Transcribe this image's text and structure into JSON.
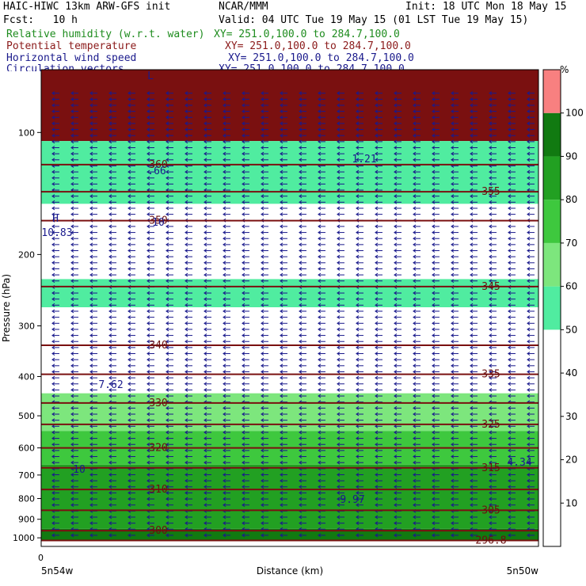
{
  "header": {
    "model": "HAIC-HIWC 13km ARW-GFS init",
    "center": "NCAR/MMM",
    "init": "Init: 18 UTC Mon 18 May 15",
    "fcst": "Fcst:   10 h",
    "valid": "Valid: 04 UTC Tue 19 May 15 (01 LST Tue 19 May 15)",
    "fields": [
      {
        "name": "Relative humidity (w.r.t. water)",
        "xy": "XY= 251.0,100.0 to 284.7,100.0",
        "color": "#1e8c1e"
      },
      {
        "name": "Potential temperature",
        "xy": "XY= 251.0,100.0 to 284.7,100.0",
        "color": "#8b1a1a"
      },
      {
        "name": "Horizontal wind speed",
        "xy": "XY= 251.0,100.0 to 284.7,100.0",
        "color": "#1a1a8c"
      },
      {
        "name": "Circulation vectors",
        "xy": "XY= 251.0,100.0 to 284.7,100.0",
        "color": "#1a1a8c"
      }
    ]
  },
  "chart_data": {
    "type": "heatmap",
    "xlabel": "Distance (km)",
    "ylabel": "Pressure (hPa)",
    "x_tick_labels": [
      "0"
    ],
    "x_end_labels": [
      "5n54w",
      "5n50w"
    ],
    "y_ticks": [
      100,
      200,
      300,
      400,
      500,
      600,
      700,
      800,
      900,
      1000
    ],
    "ylim": [
      1050,
      70
    ],
    "y_scale": "log",
    "colorbar": {
      "unit": "%",
      "levels": [
        10,
        20,
        30,
        40,
        50,
        60,
        70,
        80,
        90,
        100
      ],
      "colors": [
        "#ffffff",
        "#ffffff",
        "#ffffff",
        "#ffffff",
        "#ffffff",
        "#50eca0",
        "#7de67d",
        "#3ec83e",
        "#22a022",
        "#117a11",
        "#f88080"
      ]
    },
    "rh_bands": [
      {
        "p_top": 70,
        "p_bot": 105,
        "color": "#7a1010"
      },
      {
        "p_top": 105,
        "p_bot": 150,
        "color": "#50eca0"
      },
      {
        "p_top": 150,
        "p_bot": 230,
        "color": "#ffffff"
      },
      {
        "p_top": 230,
        "p_bot": 270,
        "color": "#50eca0"
      },
      {
        "p_top": 270,
        "p_bot": 440,
        "color": "#ffffff"
      },
      {
        "p_top": 440,
        "p_bot": 545,
        "color": "#7de67d"
      },
      {
        "p_top": 545,
        "p_bot": 660,
        "color": "#3ec83e"
      },
      {
        "p_top": 660,
        "p_bot": 950,
        "color": "#22a022"
      },
      {
        "p_top": 950,
        "p_bot": 1015,
        "color": "#117a11"
      }
    ],
    "theta_contours": [
      {
        "value": 360,
        "p": 120
      },
      {
        "value": 355,
        "p": 140
      },
      {
        "value": 350,
        "p": 165
      },
      {
        "value": 345,
        "p": 240
      },
      {
        "value": 340,
        "p": 335
      },
      {
        "value": 335,
        "p": 395
      },
      {
        "value": 330,
        "p": 465
      },
      {
        "value": 325,
        "p": 525
      },
      {
        "value": 320,
        "p": 600
      },
      {
        "value": 315,
        "p": 672
      },
      {
        "value": 310,
        "p": 760
      },
      {
        "value": 305,
        "p": 855
      },
      {
        "value": 300,
        "p": 960
      },
      {
        "value": 296.8,
        "p": 1015
      }
    ],
    "wind_labels": [
      "L",
      "H",
      "10",
      "1.21",
      ".66",
      "10.83",
      "7.62",
      "9.97",
      "4.34",
      "10"
    ]
  }
}
